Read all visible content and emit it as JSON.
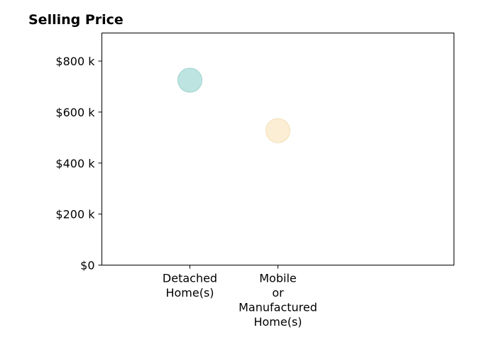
{
  "chart_data": {
    "type": "scatter",
    "title": "Selling Price",
    "xlabel": "",
    "ylabel": "",
    "categories": [
      [
        "Detached",
        "Home(s)"
      ],
      [
        "Mobile",
        "or",
        "Manufactured",
        "Home(s)"
      ]
    ],
    "values": [
      725000,
      527000
    ],
    "point_colors": [
      "#b2dfdb",
      "#faebcc"
    ],
    "point_stroke_colors": [
      "#9fd3ce",
      "#f3dfb6"
    ],
    "ylim": [
      0,
      910000
    ],
    "yticks": [
      0,
      200000,
      400000,
      600000,
      800000
    ],
    "ytick_labels": [
      "$0",
      "$200 k",
      "$400 k",
      "$600 k",
      "$800 k"
    ],
    "grid": false,
    "legend": "none"
  }
}
